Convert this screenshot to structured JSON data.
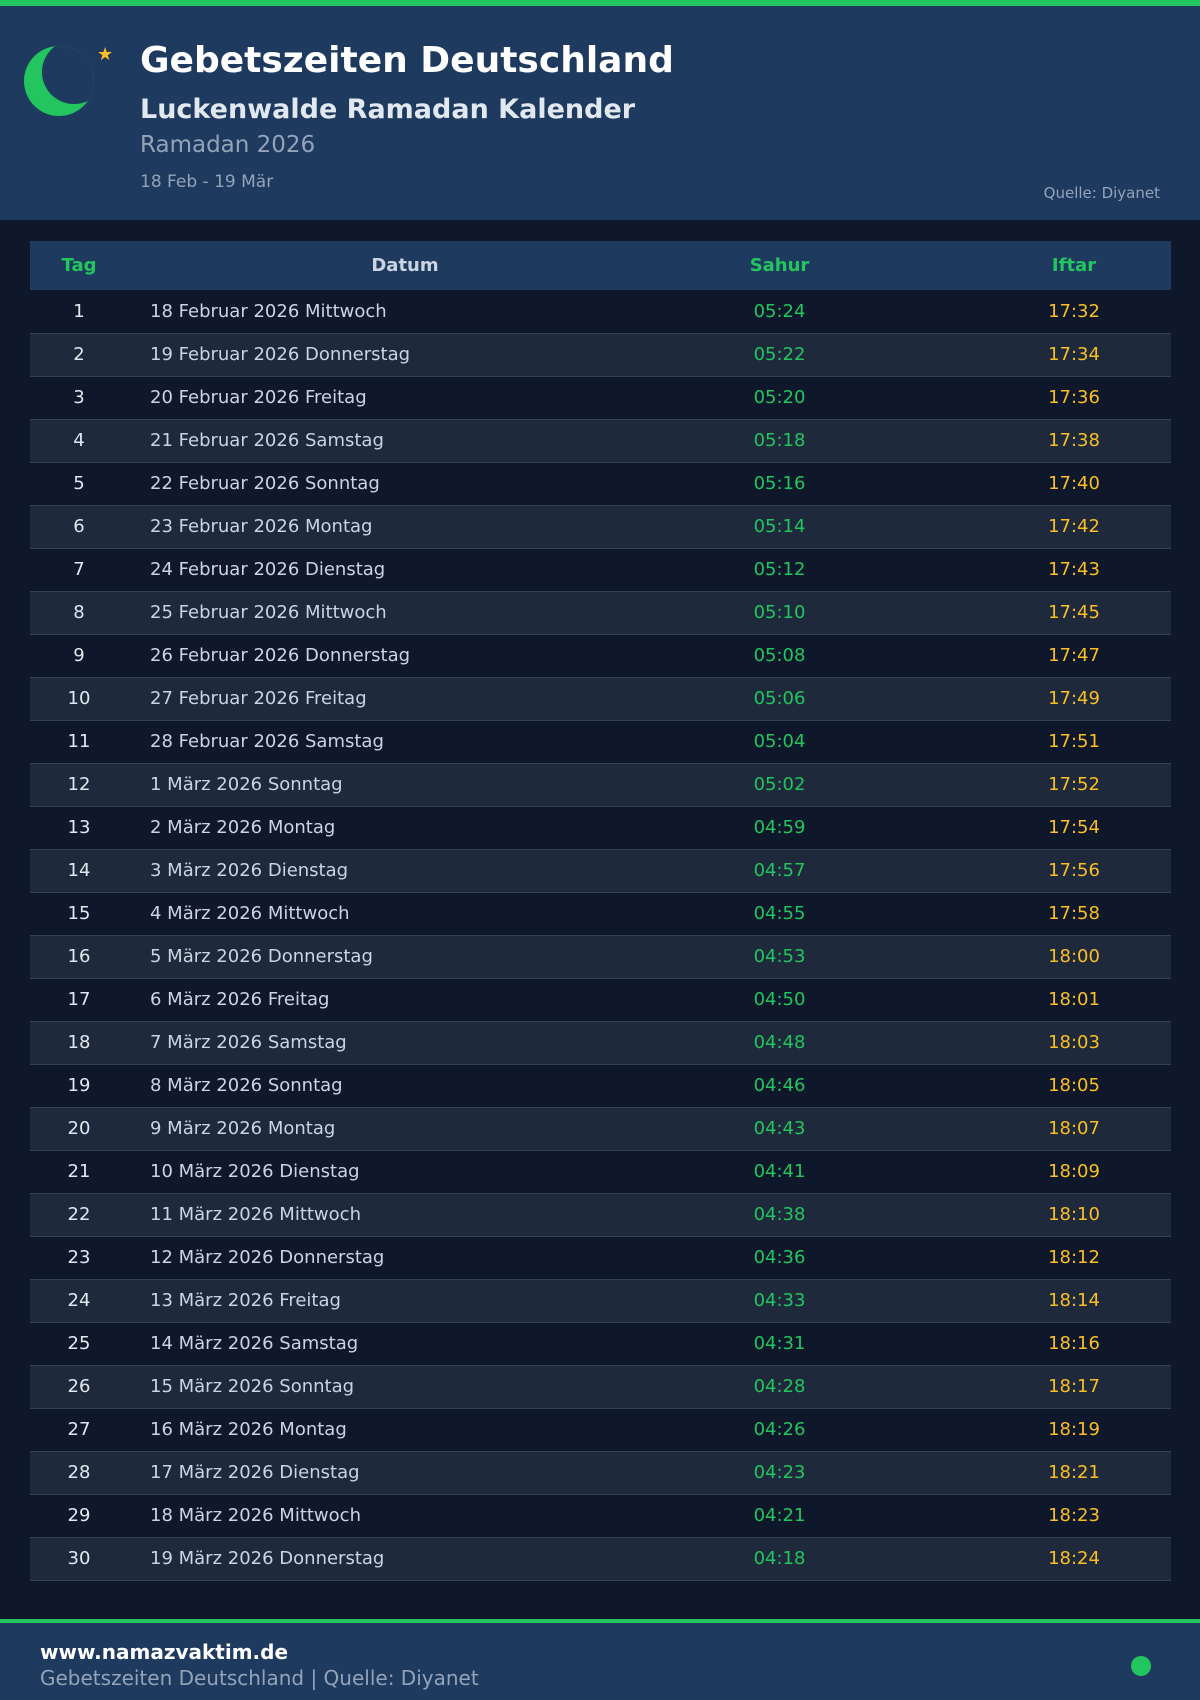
{
  "header": {
    "title": "Gebetszeiten Deutschland",
    "subtitle": "Luckenwalde Ramadan Kalender",
    "year": "Ramadan 2026",
    "range": "18 Feb - 19 Mär",
    "source": "Quelle: Diyanet"
  },
  "table": {
    "columns": [
      "Tag",
      "Datum",
      "Sahur",
      "Iftar"
    ],
    "rows": [
      [
        "1",
        "18 Februar 2026 Mittwoch",
        "05:24",
        "17:32"
      ],
      [
        "2",
        "19 Februar 2026 Donnerstag",
        "05:22",
        "17:34"
      ],
      [
        "3",
        "20 Februar 2026 Freitag",
        "05:20",
        "17:36"
      ],
      [
        "4",
        "21 Februar 2026 Samstag",
        "05:18",
        "17:38"
      ],
      [
        "5",
        "22 Februar 2026 Sonntag",
        "05:16",
        "17:40"
      ],
      [
        "6",
        "23 Februar 2026 Montag",
        "05:14",
        "17:42"
      ],
      [
        "7",
        "24 Februar 2026 Dienstag",
        "05:12",
        "17:43"
      ],
      [
        "8",
        "25 Februar 2026 Mittwoch",
        "05:10",
        "17:45"
      ],
      [
        "9",
        "26 Februar 2026 Donnerstag",
        "05:08",
        "17:47"
      ],
      [
        "10",
        "27 Februar 2026 Freitag",
        "05:06",
        "17:49"
      ],
      [
        "11",
        "28 Februar 2026 Samstag",
        "05:04",
        "17:51"
      ],
      [
        "12",
        "1 März 2026 Sonntag",
        "05:02",
        "17:52"
      ],
      [
        "13",
        "2 März 2026 Montag",
        "04:59",
        "17:54"
      ],
      [
        "14",
        "3 März 2026 Dienstag",
        "04:57",
        "17:56"
      ],
      [
        "15",
        "4 März 2026 Mittwoch",
        "04:55",
        "17:58"
      ],
      [
        "16",
        "5 März 2026 Donnerstag",
        "04:53",
        "18:00"
      ],
      [
        "17",
        "6 März 2026 Freitag",
        "04:50",
        "18:01"
      ],
      [
        "18",
        "7 März 2026 Samstag",
        "04:48",
        "18:03"
      ],
      [
        "19",
        "8 März 2026 Sonntag",
        "04:46",
        "18:05"
      ],
      [
        "20",
        "9 März 2026 Montag",
        "04:43",
        "18:07"
      ],
      [
        "21",
        "10 März 2026 Dienstag",
        "04:41",
        "18:09"
      ],
      [
        "22",
        "11 März 2026 Mittwoch",
        "04:38",
        "18:10"
      ],
      [
        "23",
        "12 März 2026 Donnerstag",
        "04:36",
        "18:12"
      ],
      [
        "24",
        "13 März 2026 Freitag",
        "04:33",
        "18:14"
      ],
      [
        "25",
        "14 März 2026 Samstag",
        "04:31",
        "18:16"
      ],
      [
        "26",
        "15 März 2026 Sonntag",
        "04:28",
        "18:17"
      ],
      [
        "27",
        "16 März 2026 Montag",
        "04:26",
        "18:19"
      ],
      [
        "28",
        "17 März 2026 Dienstag",
        "04:23",
        "18:21"
      ],
      [
        "29",
        "18 März 2026 Mittwoch",
        "04:21",
        "18:23"
      ],
      [
        "30",
        "19 März 2026 Donnerstag",
        "04:18",
        "18:24"
      ]
    ]
  },
  "footer": {
    "url": "www.namazvaktim.de",
    "subtitle": "Gebetszeiten Deutschland | Quelle: Diyanet"
  },
  "colors": {
    "accent": "#22c55e",
    "iftar": "#fbbf24",
    "header_bg": "#1e3a5f",
    "page_bg": "#0f172a"
  },
  "icons": {
    "logo": "crescent-moon-icon",
    "star": "star-icon",
    "status": "status-dot-icon"
  }
}
